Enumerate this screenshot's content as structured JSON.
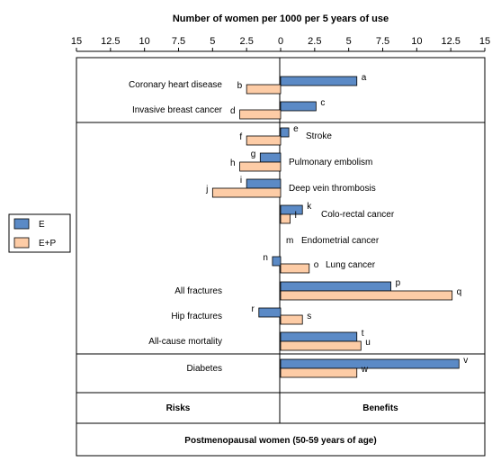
{
  "chart_data": {
    "type": "bar",
    "orientation": "horizontal",
    "title": "Number of women per 1000 per 5 years of use",
    "x_ticks": [
      "15",
      "12.5",
      "10",
      "7.5",
      "5",
      "2.5",
      "0",
      "2.5",
      "5",
      "7.5",
      "10",
      "12.5",
      "15"
    ],
    "x_tick_values": [
      -15,
      -12.5,
      -10,
      -7.5,
      -5,
      -2.5,
      0,
      2.5,
      5,
      7.5,
      10,
      12.5,
      15
    ],
    "xlim": [
      -15,
      15
    ],
    "left_side_label": "Risks",
    "right_side_label": "Benefits",
    "footer": "Postmenopausal women (50-59 years of age)",
    "legend": {
      "position": "left",
      "entries": [
        {
          "name": "E",
          "color": "#5b8ac6"
        },
        {
          "name": "E+P",
          "color": "#fdcca6"
        }
      ]
    },
    "colors": {
      "E": "#5b8ac6",
      "E+P": "#fdcca6",
      "border": "#000000"
    },
    "categories": [
      {
        "label": "Coronary heart disease",
        "label_side": "left",
        "bars": [
          {
            "series": "E",
            "letter": "a",
            "value": 5.6
          },
          {
            "series": "E+P",
            "letter": "b",
            "value": -2.5
          }
        ]
      },
      {
        "label": "Invasive breast cancer",
        "label_side": "left",
        "bars": [
          {
            "series": "E",
            "letter": "c",
            "value": 2.6
          },
          {
            "series": "E+P",
            "letter": "d",
            "value": -3.0
          }
        ]
      },
      {
        "label": "Stroke",
        "label_side": "right",
        "bars": [
          {
            "series": "E",
            "letter": "e",
            "value": 0.6
          },
          {
            "series": "E+P",
            "letter": "f",
            "value": -2.5
          }
        ]
      },
      {
        "label": "Pulmonary embolism",
        "label_side": "right",
        "bars": [
          {
            "series": "E",
            "letter": "g",
            "value": -1.5
          },
          {
            "series": "E+P",
            "letter": "h",
            "value": -3.0
          }
        ]
      },
      {
        "label": "Deep vein thrombosis",
        "label_side": "right",
        "bars": [
          {
            "series": "E",
            "letter": "i",
            "value": -2.5
          },
          {
            "series": "E+P",
            "letter": "j",
            "value": -5.0
          }
        ]
      },
      {
        "label": "Colo-rectal cancer",
        "label_side": "right",
        "bars": [
          {
            "series": "E",
            "letter": "k",
            "value": 1.6
          },
          {
            "series": "E+P",
            "letter": "l",
            "value": 0.7
          }
        ]
      },
      {
        "label": "Endometrial cancer",
        "label_side": "right",
        "bars": [
          {
            "series": "E",
            "letter": "m",
            "value": 0
          }
        ]
      },
      {
        "label": "Lung cancer",
        "label_side": "right",
        "bars": [
          {
            "series": "E",
            "letter": "n",
            "value": -0.6
          },
          {
            "series": "E+P",
            "letter": "o",
            "value": 2.1
          }
        ]
      },
      {
        "label": "All fractures",
        "label_side": "left",
        "bars": [
          {
            "series": "E",
            "letter": "p",
            "value": 8.1
          },
          {
            "series": "E+P",
            "letter": "q",
            "value": 12.6
          }
        ]
      },
      {
        "label": "Hip fractures",
        "label_side": "left",
        "bars": [
          {
            "series": "E",
            "letter": "r",
            "value": -1.6
          },
          {
            "series": "E+P",
            "letter": "s",
            "value": 1.6
          }
        ]
      },
      {
        "label": "All-cause mortality",
        "label_side": "left",
        "bars": [
          {
            "series": "E",
            "letter": "t",
            "value": 5.6
          },
          {
            "series": "E+P",
            "letter": "u",
            "value": 5.9
          }
        ]
      },
      {
        "label": "Diabetes",
        "label_side": "left",
        "bars": [
          {
            "series": "E",
            "letter": "v",
            "value": 13.1
          },
          {
            "series": "E+P",
            "letter": "w",
            "value": 5.6
          }
        ]
      }
    ]
  }
}
